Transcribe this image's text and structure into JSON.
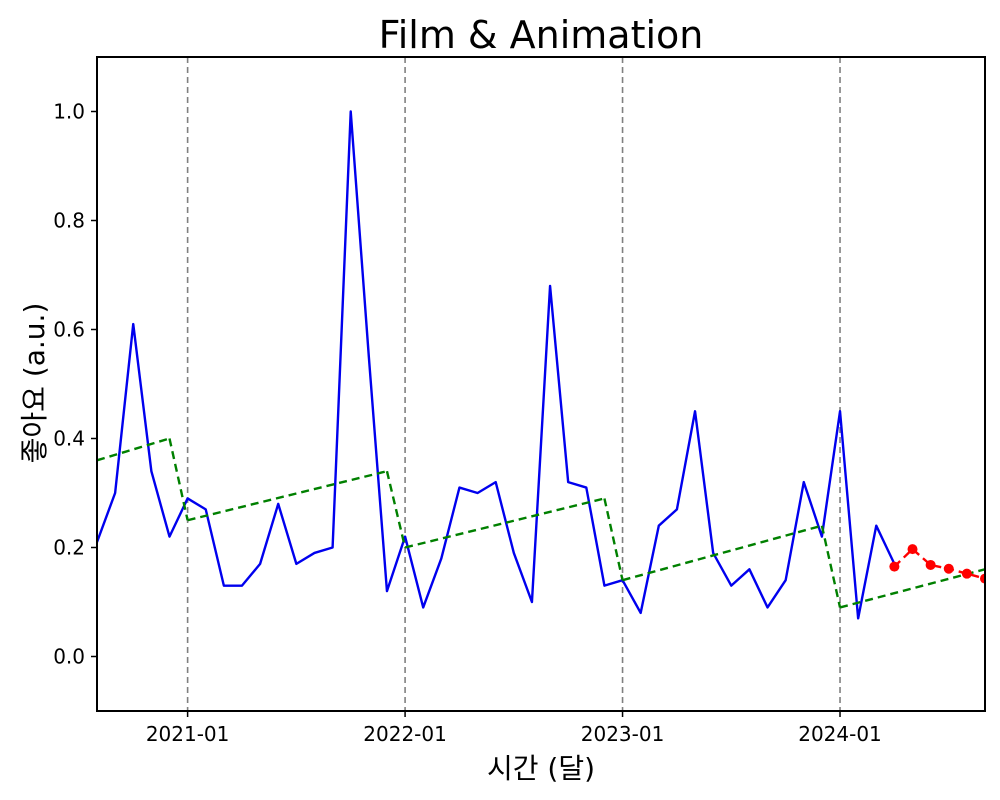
{
  "chart_data": {
    "type": "line",
    "title": "Film & Animation",
    "xlabel": "시간 (달)",
    "ylabel": "좋아요 (a.u.)",
    "xlim": [
      "2020-08-01",
      "2024-09-01"
    ],
    "ylim": [
      -0.1,
      1.1
    ],
    "x_ticks": [
      "2021-01",
      "2022-01",
      "2023-01",
      "2024-01"
    ],
    "y_ticks": [
      "0.0",
      "0.2",
      "0.4",
      "0.6",
      "0.8",
      "1.0"
    ],
    "y_tick_values": [
      0.0,
      0.2,
      0.4,
      0.6,
      0.8,
      1.0
    ],
    "vlines": [
      "2021-01",
      "2022-01",
      "2023-01",
      "2024-01"
    ],
    "grid": false,
    "series": [
      {
        "kind": "line",
        "color": "#0000ee",
        "style": "solid",
        "x": [
          "2020-08",
          "2020-09",
          "2020-10",
          "2020-11",
          "2020-12",
          "2021-01",
          "2021-02",
          "2021-03",
          "2021-04",
          "2021-05",
          "2021-06",
          "2021-07",
          "2021-08",
          "2021-09",
          "2021-10",
          "2021-11",
          "2021-12",
          "2022-01",
          "2022-02",
          "2022-03",
          "2022-04",
          "2022-05",
          "2022-06",
          "2022-07",
          "2022-08",
          "2022-09",
          "2022-10",
          "2022-11",
          "2022-12",
          "2023-01",
          "2023-02",
          "2023-03",
          "2023-04",
          "2023-05",
          "2023-06",
          "2023-07",
          "2023-08",
          "2023-09",
          "2023-10",
          "2023-11",
          "2023-12",
          "2024-01",
          "2024-02",
          "2024-03",
          "2024-04"
        ],
        "y": [
          0.21,
          0.3,
          0.61,
          0.34,
          0.22,
          0.29,
          0.27,
          0.13,
          0.13,
          0.17,
          0.28,
          0.17,
          0.19,
          0.2,
          1.0,
          0.55,
          0.12,
          0.22,
          0.09,
          0.18,
          0.31,
          0.3,
          0.32,
          0.19,
          0.1,
          0.68,
          0.32,
          0.31,
          0.13,
          0.14,
          0.08,
          0.24,
          0.27,
          0.45,
          0.19,
          0.13,
          0.16,
          0.09,
          0.14,
          0.32,
          0.22,
          0.45,
          0.07,
          0.24,
          0.17
        ]
      },
      {
        "kind": "trend",
        "color": "#008000",
        "style": "dashed",
        "segments": [
          {
            "x": [
              "2020-08",
              "2020-12"
            ],
            "y": [
              0.36,
              0.4
            ]
          },
          {
            "x": [
              "2021-01",
              "2021-12"
            ],
            "y": [
              0.25,
              0.34
            ]
          },
          {
            "x": [
              "2022-01",
              "2022-12"
            ],
            "y": [
              0.2,
              0.29
            ]
          },
          {
            "x": [
              "2023-01",
              "2023-12"
            ],
            "y": [
              0.14,
              0.24
            ]
          },
          {
            "x": [
              "2024-01",
              "2024-09"
            ],
            "y": [
              0.09,
              0.16
            ]
          }
        ]
      },
      {
        "kind": "forecast",
        "color": "#ff0000",
        "style": "dashed",
        "markers": true,
        "x": [
          "2024-04",
          "2024-05",
          "2024-06",
          "2024-07",
          "2024-08",
          "2024-09"
        ],
        "y": [
          0.165,
          0.197,
          0.168,
          0.161,
          0.152,
          0.143
        ]
      }
    ]
  }
}
